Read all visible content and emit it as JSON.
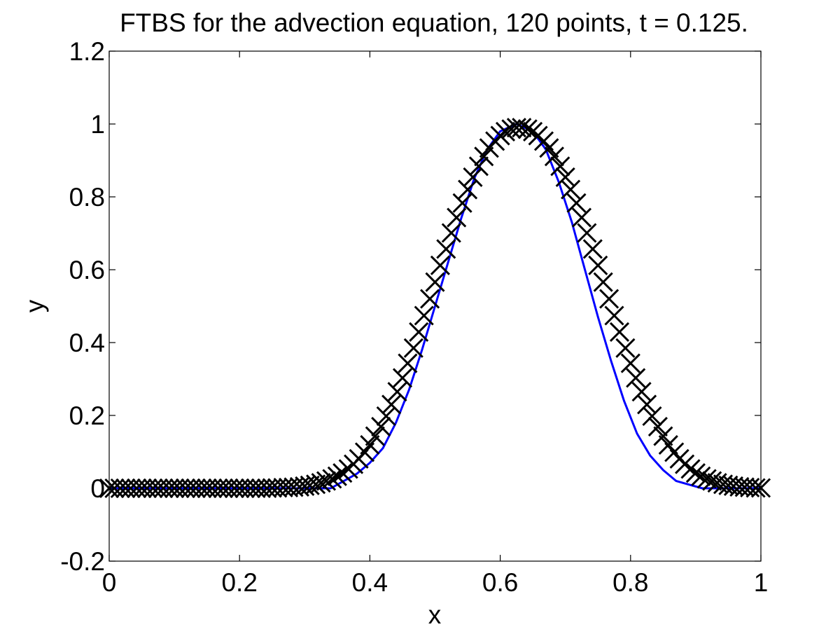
{
  "chart_data": {
    "type": "line",
    "title": "FTBS for the advection equation, 120 points, t = 0.125.",
    "xlabel": "x",
    "ylabel": "y",
    "xlim": [
      0,
      1
    ],
    "ylim": [
      -0.2,
      1.2
    ],
    "grid": false,
    "legend": "none",
    "x_ticks": [
      {
        "value": 0,
        "label": "0"
      },
      {
        "value": 0.2,
        "label": "0.2"
      },
      {
        "value": 0.4,
        "label": "0.4"
      },
      {
        "value": 0.6,
        "label": "0.6"
      },
      {
        "value": 0.8,
        "label": "0.8"
      },
      {
        "value": 1,
        "label": "1"
      }
    ],
    "y_ticks": [
      {
        "value": -0.2,
        "label": "-0.2"
      },
      {
        "value": 0,
        "label": "0"
      },
      {
        "value": 0.2,
        "label": "0.2"
      },
      {
        "value": 0.4,
        "label": "0.4"
      },
      {
        "value": 0.6,
        "label": "0.6"
      },
      {
        "value": 0.8,
        "label": "0.8"
      },
      {
        "value": 1,
        "label": "1"
      },
      {
        "value": 1.2,
        "label": "1.2"
      }
    ],
    "series": [
      {
        "style": "line",
        "color": "#0000ff",
        "x": [
          0,
          0.34,
          0.36,
          0.38,
          0.4,
          0.42,
          0.44,
          0.46,
          0.48,
          0.5,
          0.52,
          0.54,
          0.56,
          0.58,
          0.6,
          0.625,
          0.65,
          0.67,
          0.69,
          0.71,
          0.73,
          0.75,
          0.77,
          0.79,
          0.81,
          0.83,
          0.85,
          0.87,
          0.89,
          0.91,
          0.93,
          1
        ],
        "y": [
          0,
          0.0,
          0.02,
          0.04,
          0.07,
          0.11,
          0.18,
          0.27,
          0.38,
          0.5,
          0.62,
          0.74,
          0.85,
          0.93,
          0.98,
          1.0,
          0.98,
          0.93,
          0.84,
          0.73,
          0.6,
          0.47,
          0.35,
          0.24,
          0.15,
          0.09,
          0.05,
          0.02,
          0.01,
          0.0,
          0.0,
          0
        ]
      },
      {
        "style": "markers",
        "marker": "x",
        "color": "#000000",
        "x": [
          0,
          0.008,
          0.017,
          0.025,
          0.033,
          0.042,
          0.05,
          0.058,
          0.067,
          0.075,
          0.083,
          0.092,
          0.1,
          0.108,
          0.117,
          0.125,
          0.133,
          0.142,
          0.15,
          0.158,
          0.167,
          0.175,
          0.183,
          0.192,
          0.2,
          0.208,
          0.217,
          0.225,
          0.233,
          0.242,
          0.25,
          0.258,
          0.267,
          0.275,
          0.283,
          0.292,
          0.3,
          0.308,
          0.317,
          0.325,
          0.333,
          0.342,
          0.35,
          0.358,
          0.367,
          0.375,
          0.383,
          0.392,
          0.4,
          0.408,
          0.417,
          0.425,
          0.433,
          0.442,
          0.45,
          0.458,
          0.467,
          0.475,
          0.483,
          0.492,
          0.5,
          0.508,
          0.517,
          0.525,
          0.533,
          0.542,
          0.55,
          0.558,
          0.567,
          0.575,
          0.583,
          0.592,
          0.6,
          0.608,
          0.617,
          0.625,
          0.633,
          0.642,
          0.65,
          0.658,
          0.667,
          0.675,
          0.683,
          0.692,
          0.7,
          0.708,
          0.717,
          0.725,
          0.733,
          0.742,
          0.75,
          0.758,
          0.767,
          0.775,
          0.783,
          0.792,
          0.8,
          0.808,
          0.817,
          0.825,
          0.833,
          0.842,
          0.85,
          0.858,
          0.867,
          0.875,
          0.883,
          0.892,
          0.9,
          0.908,
          0.917,
          0.925,
          0.933,
          0.942,
          0.95,
          0.958,
          0.967,
          0.975,
          0.983,
          0.992,
          1
        ],
        "y": [
          0,
          0,
          0,
          0,
          0,
          0,
          0,
          0,
          0,
          0,
          0,
          0,
          0,
          0,
          0,
          0,
          0,
          0,
          0,
          0,
          0,
          0,
          0,
          0,
          0,
          0,
          0,
          0,
          0,
          0,
          0.001,
          0.001,
          0.002,
          0.002,
          0.003,
          0.004,
          0.006,
          0.008,
          0.011,
          0.015,
          0.02,
          0.026,
          0.033,
          0.042,
          0.053,
          0.066,
          0.081,
          0.099,
          0.119,
          0.143,
          0.169,
          0.198,
          0.23,
          0.265,
          0.303,
          0.343,
          0.385,
          0.429,
          0.474,
          0.52,
          0.566,
          0.612,
          0.657,
          0.701,
          0.743,
          0.783,
          0.82,
          0.854,
          0.884,
          0.911,
          0.934,
          0.953,
          0.968,
          0.979,
          0.986,
          0.99,
          0.99,
          0.986,
          0.979,
          0.968,
          0.953,
          0.934,
          0.911,
          0.884,
          0.854,
          0.82,
          0.783,
          0.743,
          0.701,
          0.657,
          0.612,
          0.566,
          0.52,
          0.474,
          0.429,
          0.385,
          0.343,
          0.303,
          0.265,
          0.23,
          0.198,
          0.169,
          0.143,
          0.119,
          0.099,
          0.081,
          0.066,
          0.053,
          0.042,
          0.033,
          0.026,
          0.02,
          0.015,
          0.011,
          0.008,
          0.006,
          0.004,
          0.003,
          0.002,
          0.001,
          0.001
        ]
      }
    ]
  }
}
